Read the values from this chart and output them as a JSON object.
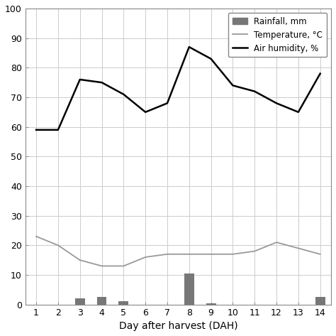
{
  "days": [
    1,
    2,
    3,
    4,
    5,
    6,
    7,
    8,
    9,
    10,
    11,
    12,
    13,
    14
  ],
  "air_humidity": [
    59,
    59,
    76,
    75,
    71,
    65,
    68,
    87,
    83,
    74,
    72,
    68,
    65,
    78
  ],
  "temperature": [
    23,
    20,
    15,
    13,
    13,
    16,
    17,
    17,
    17,
    17,
    18,
    21,
    19,
    17
  ],
  "rainfall": [
    0,
    0,
    2,
    2.5,
    1,
    0,
    0,
    10.5,
    0.5,
    0,
    0,
    0,
    0,
    2.5
  ],
  "humidity_color": "#000000",
  "temperature_color": "#999999",
  "rainfall_color": "#777777",
  "ylim_min": 0,
  "ylim_max": 100,
  "yticks": [
    0,
    10,
    20,
    30,
    40,
    50,
    60,
    70,
    80,
    90,
    100
  ],
  "xlabel": "Day after harvest (DAH)",
  "legend_rainfall": "Rainfall, mm",
  "legend_temperature": "Temperature, °C",
  "legend_humidity": "Air humidity, %",
  "bar_width": 0.45,
  "grid_color": "#cccccc",
  "background_color": "#ffffff",
  "humidity_linewidth": 1.8,
  "temperature_linewidth": 1.3,
  "spine_color": "#888888",
  "label_fontsize": 9,
  "xlabel_fontsize": 10,
  "legend_fontsize": 8.5
}
